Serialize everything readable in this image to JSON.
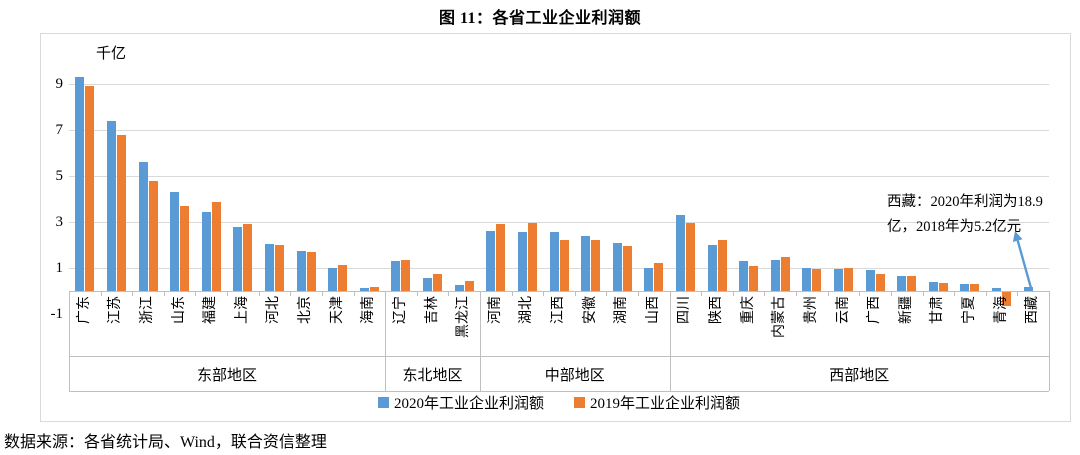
{
  "title": "图 11：各省工业企业利润额",
  "source": "数据来源：各省统计局、Wind，联合资信整理",
  "chart_data": {
    "type": "bar",
    "title": "图 11：各省工业企业利润额",
    "unit_label": "千亿",
    "xlabel": "",
    "ylabel": "千亿",
    "ylim": [
      -1,
      10
    ],
    "yticks": [
      9,
      7,
      5,
      3,
      1,
      -1
    ],
    "grid": true,
    "legend_position": "bottom",
    "categories": [
      "广东",
      "江苏",
      "浙江",
      "山东",
      "福建",
      "上海",
      "河北",
      "北京",
      "天津",
      "海南",
      "辽宁",
      "吉林",
      "黑龙江",
      "河南",
      "湖北",
      "江西",
      "安徽",
      "湖南",
      "山西",
      "四川",
      "陕西",
      "重庆",
      "内蒙古",
      "贵州",
      "云南",
      "广西",
      "新疆",
      "甘肃",
      "宁夏",
      "青海",
      "西藏"
    ],
    "series": [
      {
        "name": "2020年工业企业利润额",
        "color": "#5B9BD5",
        "values": [
          9.3,
          7.4,
          5.6,
          4.3,
          3.45,
          2.8,
          2.05,
          1.75,
          1.0,
          0.12,
          1.3,
          0.55,
          0.25,
          2.6,
          2.55,
          2.55,
          2.4,
          2.1,
          1.0,
          3.3,
          2.0,
          1.3,
          1.35,
          1.0,
          0.95,
          0.9,
          0.65,
          0.4,
          0.3,
          0.15,
          0.19
        ]
      },
      {
        "name": "2019年工业企业利润额",
        "color": "#ED7D31",
        "values": [
          8.9,
          6.8,
          4.8,
          3.7,
          3.85,
          2.9,
          2.0,
          1.7,
          1.15,
          0.17,
          1.35,
          0.75,
          0.45,
          2.9,
          2.95,
          2.2,
          2.2,
          1.95,
          1.2,
          2.95,
          2.2,
          1.1,
          1.5,
          0.95,
          1.0,
          0.75,
          0.65,
          0.35,
          0.3,
          -0.6,
          null
        ]
      }
    ],
    "groups": [
      {
        "label": "东部地区",
        "count": 10
      },
      {
        "label": "东北地区",
        "count": 3
      },
      {
        "label": "中部地区",
        "count": 6
      },
      {
        "label": "西部地区",
        "count": 12
      }
    ],
    "annotation": {
      "lines": [
        "西藏：2020年利润为18.9",
        "亿，2018年为5.2亿元"
      ],
      "arrow_color": "#5B9BD5"
    },
    "colors": {
      "gridline": "#D9D9D9",
      "axis": "#BFBFBF",
      "border": "#D9D9D9"
    }
  }
}
